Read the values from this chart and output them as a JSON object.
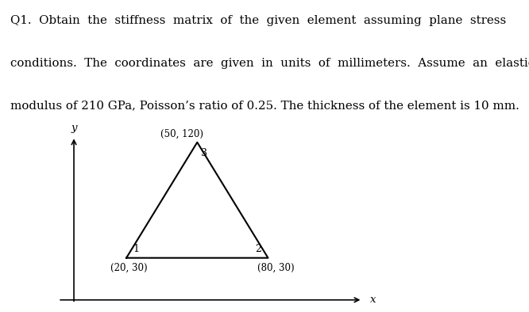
{
  "text_lines": [
    "Q1.  Obtain  the  stiffness  matrix  of  the  given  element  assuming  plane  stress",
    "conditions.  The  coordinates  are  given  in  units  of  millimeters.  Assume  an  elastic",
    "modulus of 210 GPa, Poisson’s ratio of 0.25. The thickness of the element is 10 mm."
  ],
  "nodes": {
    "1": [
      20,
      30
    ],
    "2": [
      80,
      30
    ],
    "3": [
      50,
      120
    ]
  },
  "node_labels": {
    "1": "1",
    "2": "2",
    "3": "3"
  },
  "coord_labels": {
    "1": "(20, 30)",
    "2": "(80, 30)",
    "3": "(50, 120)"
  },
  "triangle_color": "#000000",
  "triangle_linewidth": 1.5,
  "background_color": "#ffffff",
  "fig_width": 6.66,
  "fig_height": 3.94,
  "dpi": 100
}
